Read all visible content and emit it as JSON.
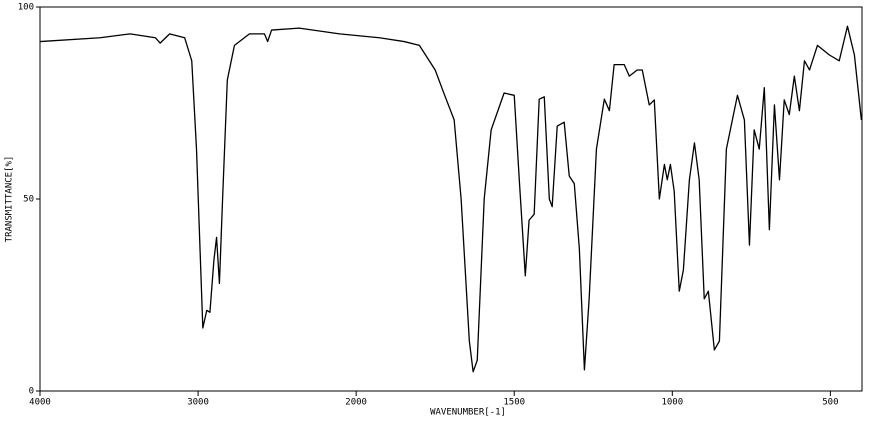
{
  "chart_data": {
    "type": "line",
    "xlabel": "WAVENUMBER[-1]",
    "ylabel": "TRANSMITTANCE[%]",
    "x_reversed": true,
    "x_scale_break": {
      "at": 2000,
      "ratio": 2
    },
    "xlim": [
      4000,
      400
    ],
    "xticks": [
      4000,
      3000,
      2000,
      1500,
      1000,
      500
    ],
    "ylim": [
      0,
      100
    ],
    "yticks": [
      0,
      50,
      100
    ],
    "grid": false,
    "series": [
      {
        "color": "#000000",
        "x": [
          4000,
          3620,
          3430,
          3270,
          3240,
          3180,
          3085,
          3040,
          3010,
          2970,
          2945,
          2925,
          2900,
          2883,
          2865,
          2845,
          2815,
          2770,
          2675,
          2580,
          2560,
          2535,
          2360,
          2105,
          1927,
          1848,
          1800,
          1750,
          1720,
          1690,
          1668,
          1642,
          1630,
          1617,
          1595,
          1573,
          1532,
          1500,
          1484,
          1465,
          1453,
          1437,
          1421,
          1405,
          1389,
          1380,
          1364,
          1342,
          1326,
          1310,
          1294,
          1278,
          1263,
          1240,
          1215,
          1199,
          1184,
          1152,
          1136,
          1111,
          1095,
          1073,
          1057,
          1041,
          1025,
          1016,
          1006,
          994,
          978,
          965,
          946,
          930,
          915,
          899,
          886,
          867,
          851,
          829,
          794,
          772,
          756,
          741,
          725,
          709,
          693,
          677,
          661,
          646,
          630,
          614,
          598,
          582,
          566,
          541,
          503,
          472,
          446,
          424,
          402
        ],
        "values": [
          91,
          92,
          93,
          92,
          90.6,
          93,
          92,
          86,
          63,
          16.4,
          21,
          20.5,
          34,
          40,
          28,
          50,
          81,
          90,
          93,
          93,
          91,
          94,
          94.5,
          93,
          92,
          91,
          90,
          83.6,
          77,
          70.6,
          50,
          13,
          5,
          8,
          50,
          68,
          77.6,
          77,
          55,
          30,
          44.5,
          46,
          76,
          76.6,
          50,
          48,
          69,
          70,
          56,
          54,
          37,
          5.5,
          24,
          63,
          76,
          73,
          85,
          85,
          82,
          83.6,
          83.6,
          74.5,
          75.8,
          50,
          59,
          55,
          59,
          52,
          26,
          31.5,
          55,
          64.6,
          55,
          24,
          26,
          10.7,
          13,
          63,
          77,
          70.6,
          38,
          68,
          63,
          79,
          42,
          74.5,
          55,
          75.8,
          72,
          82,
          73,
          86,
          83.6,
          90,
          87.5,
          86,
          95,
          87.5,
          70.6
        ]
      }
    ]
  }
}
